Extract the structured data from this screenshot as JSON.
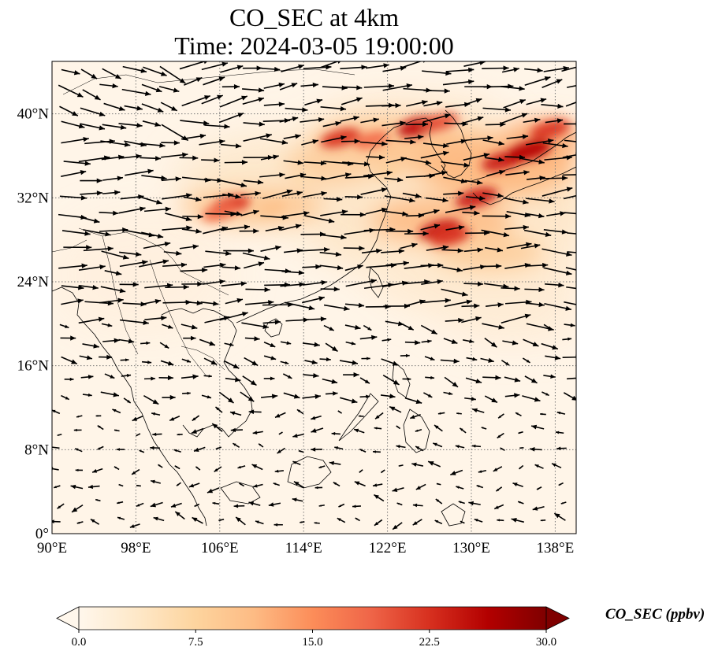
{
  "title": {
    "line1": "CO_SEC at 4km",
    "line2": "Time: 2024-03-05 19:00:00"
  },
  "map": {
    "variable": "CO_SEC",
    "level": "4km",
    "extent": {
      "lon": [
        90,
        140
      ],
      "lat": [
        0,
        45
      ]
    },
    "gridlines": true,
    "gridline_style": "dotted",
    "x_ticks": [
      {
        "value": 90,
        "label": "90°E"
      },
      {
        "value": 98,
        "label": "98°E"
      },
      {
        "value": 106,
        "label": "106°E"
      },
      {
        "value": 114,
        "label": "114°E"
      },
      {
        "value": 122,
        "label": "122°E"
      },
      {
        "value": 130,
        "label": "130°E"
      },
      {
        "value": 138,
        "label": "138°E"
      }
    ],
    "y_ticks": [
      {
        "value": 0,
        "label": "0°"
      },
      {
        "value": 8,
        "label": "8°N"
      },
      {
        "value": 16,
        "label": "16°N"
      },
      {
        "value": 24,
        "label": "24°N"
      },
      {
        "value": 32,
        "label": "32°N"
      },
      {
        "value": 40,
        "label": "40°N"
      }
    ],
    "colormap": "OrRd",
    "wind_vectors": true
  },
  "colorbar": {
    "label": "CO_SEC (ppbv)",
    "min": 0.0,
    "max": 30.0,
    "extend": "both",
    "ticks": [
      "0.0",
      "7.5",
      "15.0",
      "22.5",
      "30.0"
    ],
    "colors": [
      "#fff7ec",
      "#fee8c8",
      "#fdd49e",
      "#fdbb84",
      "#fc8d59",
      "#ef6548",
      "#d7301f",
      "#b30000",
      "#7f0000"
    ]
  },
  "chart_data": {
    "type": "heatmap",
    "title": "CO_SEC at 4km\nTime: 2024-03-05 19:00:00",
    "xlabel": "",
    "ylabel": "",
    "xlim": [
      90,
      140
    ],
    "ylim": [
      0,
      45
    ],
    "colorbar_range": [
      0,
      30
    ],
    "plumes": [
      {
        "lon": 107.0,
        "lat": 31.3,
        "value": 22
      },
      {
        "lon": 106.0,
        "lat": 30.6,
        "value": 18
      },
      {
        "lon": 111.0,
        "lat": 31.0,
        "value": 10
      },
      {
        "lon": 117.5,
        "lat": 37.7,
        "value": 22
      },
      {
        "lon": 120.5,
        "lat": 37.5,
        "value": 18
      },
      {
        "lon": 125.0,
        "lat": 38.8,
        "value": 25
      },
      {
        "lon": 127.0,
        "lat": 39.2,
        "value": 20
      },
      {
        "lon": 133.0,
        "lat": 35.5,
        "value": 24
      },
      {
        "lon": 135.5,
        "lat": 36.5,
        "value": 26
      },
      {
        "lon": 137.5,
        "lat": 38.5,
        "value": 22
      },
      {
        "lon": 130.5,
        "lat": 32.0,
        "value": 24
      },
      {
        "lon": 127.0,
        "lat": 29.0,
        "value": 24
      },
      {
        "lon": 128.0,
        "lat": 28.3,
        "value": 22
      },
      {
        "lon": 122.0,
        "lat": 34.5,
        "value": 8
      },
      {
        "lon": 114.0,
        "lat": 34.0,
        "value": 6
      }
    ]
  }
}
